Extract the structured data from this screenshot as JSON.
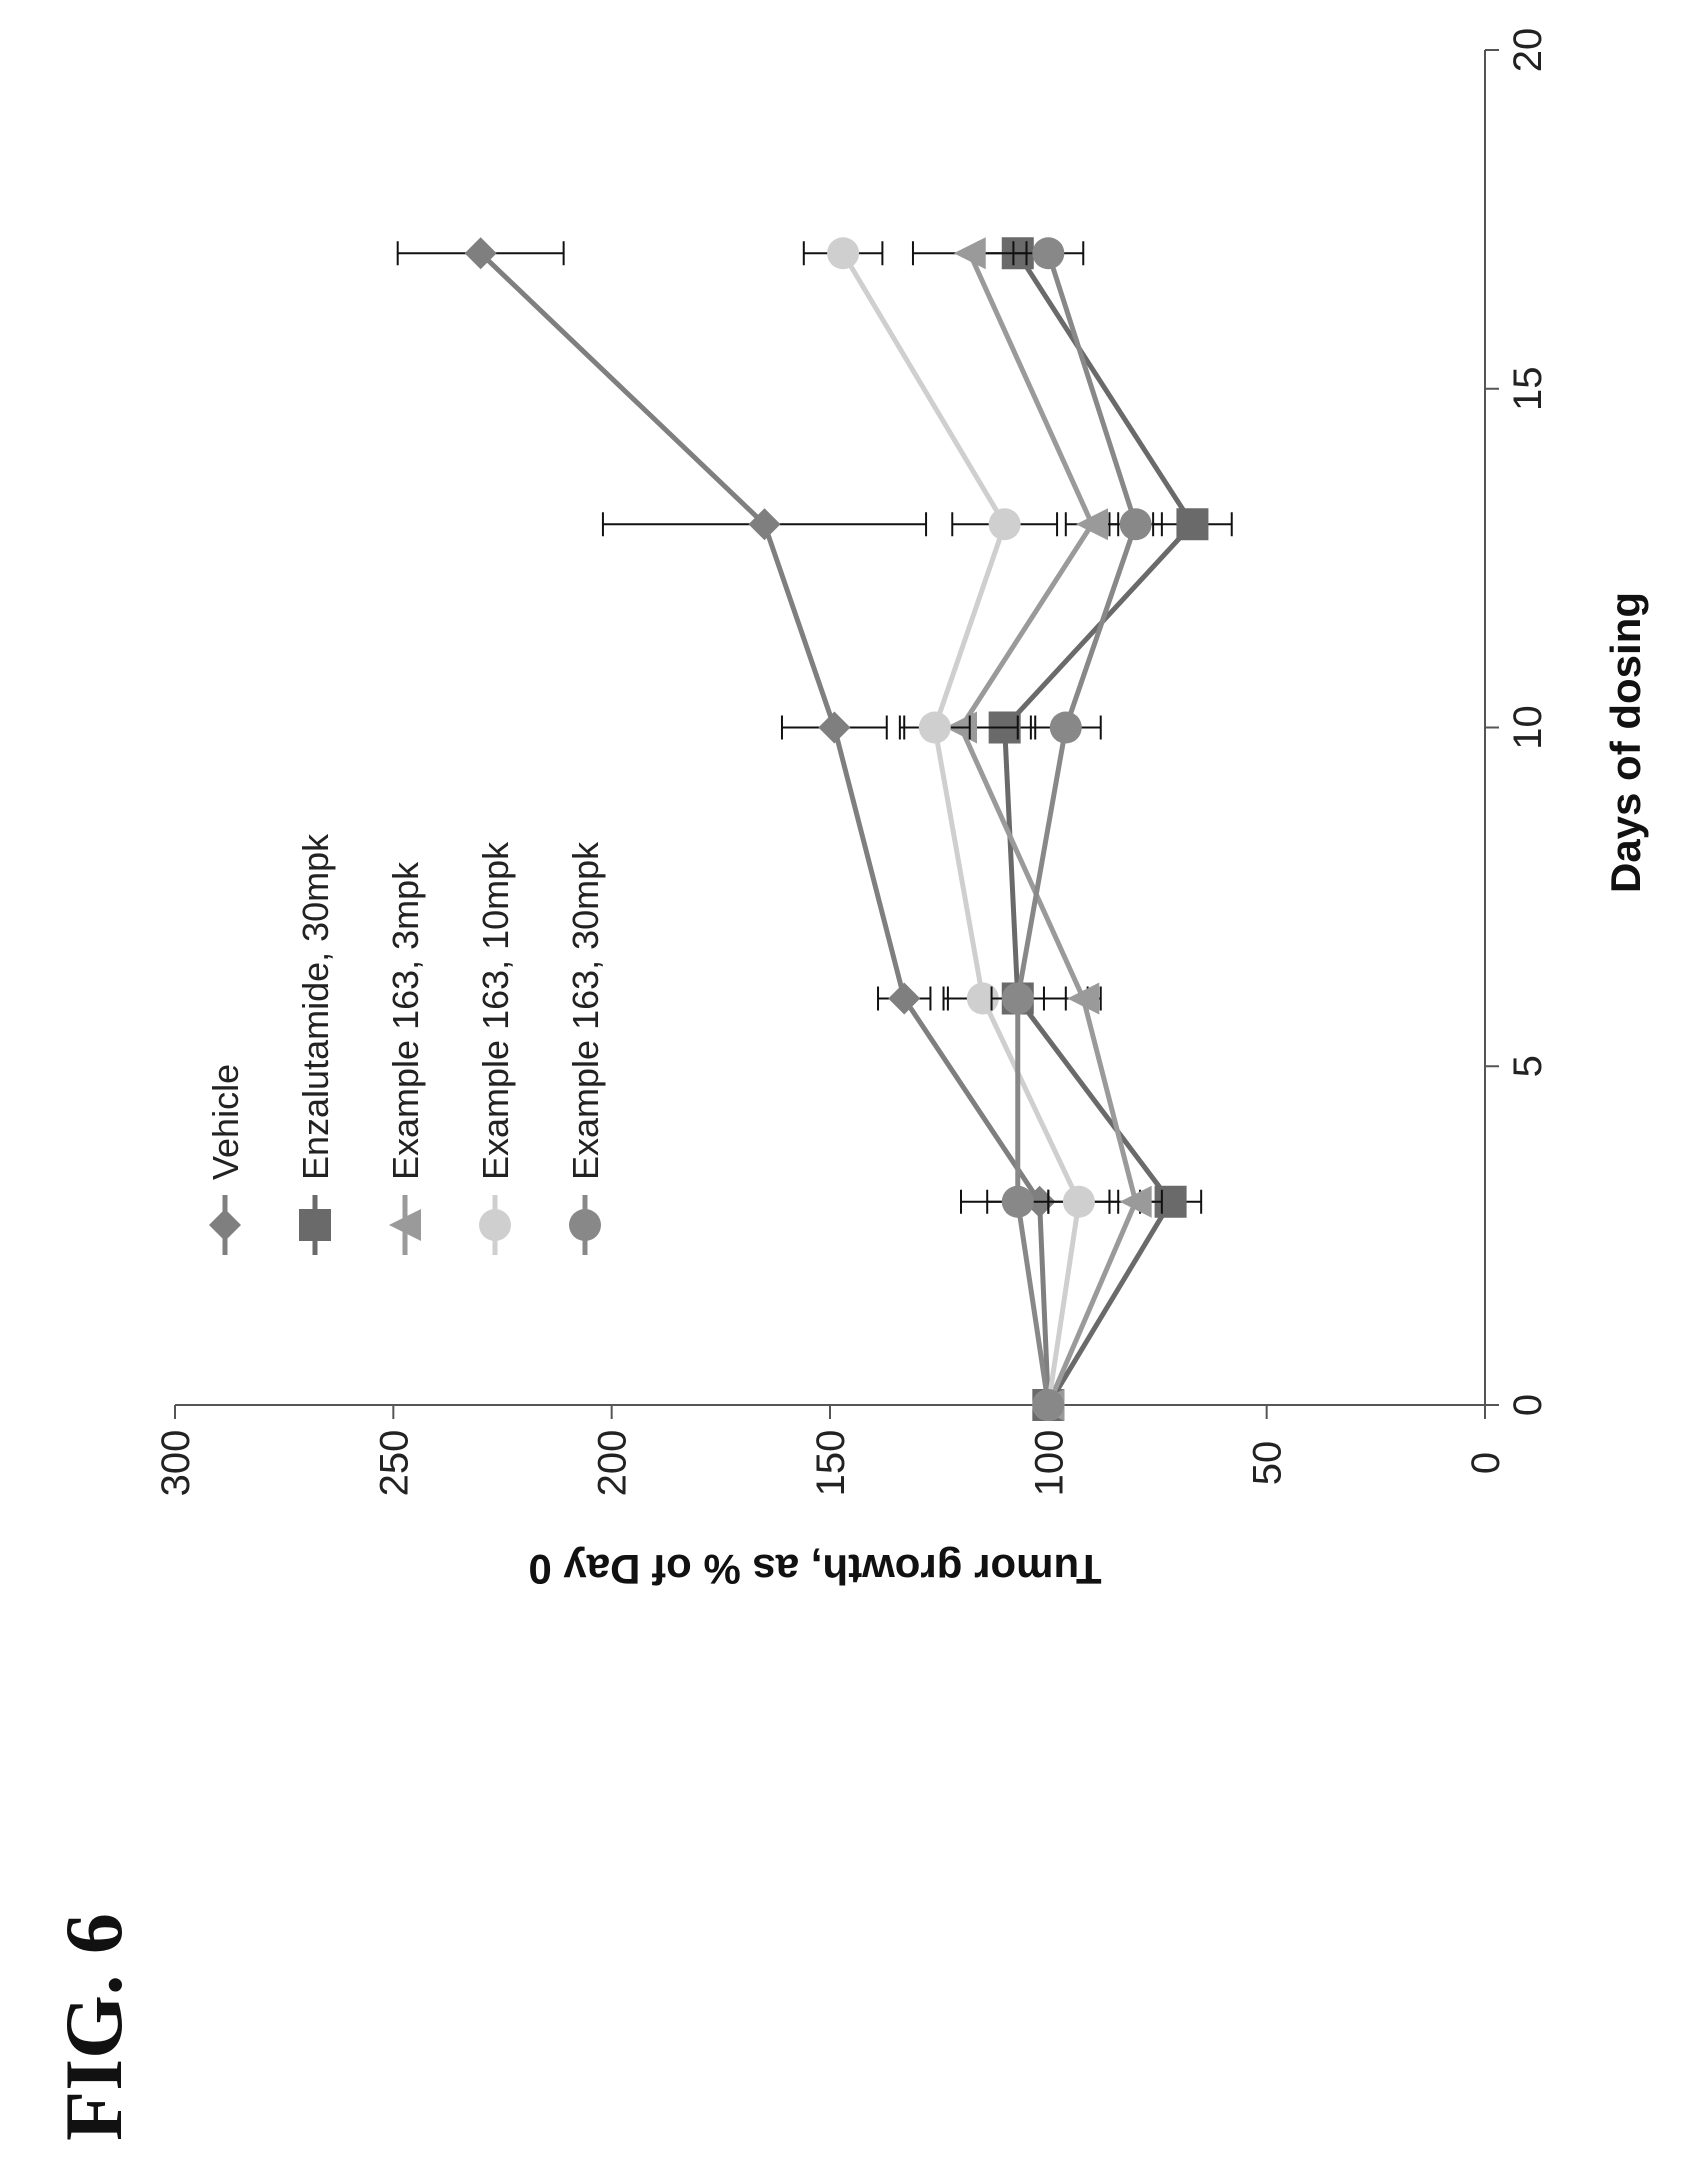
{
  "figure": {
    "label": "FIG. 6"
  },
  "chart_data": {
    "type": "line",
    "xlabel": "Days of dosing",
    "ylabel": "Tumor growth, as % of Day 0",
    "xlim": [
      0,
      20
    ],
    "ylim": [
      0,
      300
    ],
    "xticks": [
      0,
      5,
      10,
      15,
      20
    ],
    "yticks": [
      0,
      50,
      100,
      150,
      200,
      250,
      300
    ],
    "orientation": "rotated 90 degrees counter-clockwise on the page",
    "error_bars": true,
    "series": [
      {
        "name": "Vehicle",
        "marker": "diamond",
        "color": "#7f7f7f",
        "x": [
          0,
          3,
          6,
          10,
          13,
          17
        ],
        "y": [
          100,
          102,
          133,
          149,
          165,
          230
        ],
        "err": [
          0,
          18,
          6,
          12,
          37,
          19
        ]
      },
      {
        "name": "Enzalutamide,  30mpk",
        "marker": "square",
        "color": "#6a6a6a",
        "x": [
          0,
          3,
          6,
          10,
          13,
          17
        ],
        "y": [
          100,
          72,
          107,
          110,
          67,
          107
        ],
        "err": [
          0,
          7,
          16,
          7,
          9,
          9
        ]
      },
      {
        "name": "Example 163, 3mpk",
        "marker": "triangle",
        "color": "#9a9a9a",
        "x": [
          0,
          3,
          6,
          10,
          13,
          17
        ],
        "y": [
          100,
          80,
          92,
          120,
          90,
          118
        ],
        "err": [
          0,
          6,
          4,
          13,
          6,
          13
        ]
      },
      {
        "name": "Example 163, 10mpk",
        "marker": "circle",
        "color": "#cfcfcf",
        "x": [
          0,
          3,
          6,
          10,
          13,
          17
        ],
        "y": [
          100,
          93,
          115,
          126,
          110,
          147
        ],
        "err": [
          0,
          7,
          9,
          8,
          12,
          9
        ]
      },
      {
        "name": "Example 163, 30mpk",
        "marker": "circle",
        "color": "#888888",
        "x": [
          0,
          3,
          6,
          10,
          13,
          17
        ],
        "y": [
          100,
          107,
          107,
          96,
          80,
          100
        ],
        "err": [
          0,
          7,
          6,
          8,
          6,
          8
        ]
      }
    ]
  }
}
